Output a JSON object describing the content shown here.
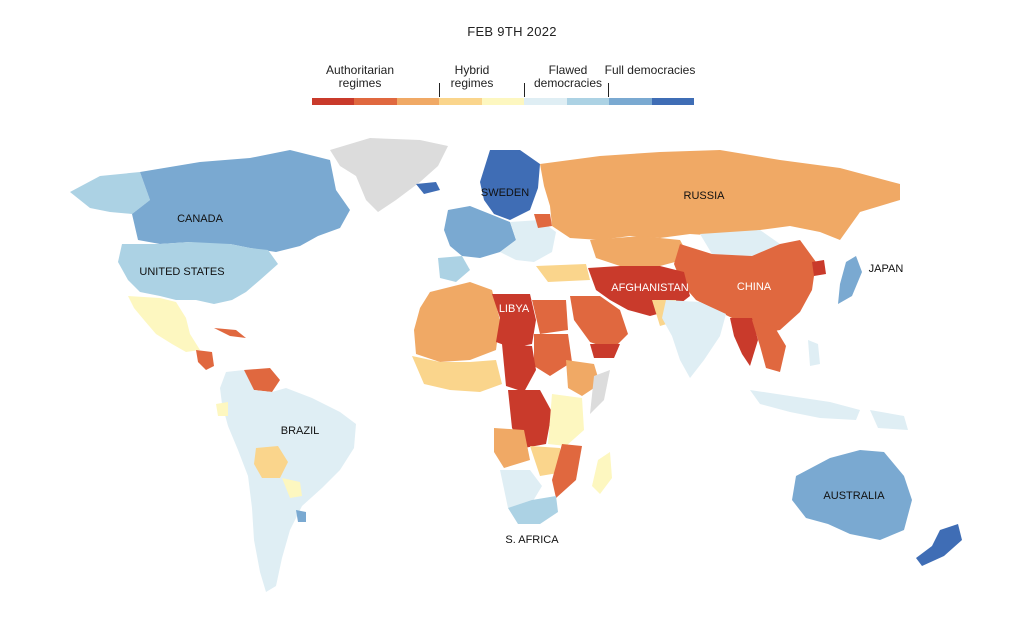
{
  "header": {
    "date": "FEB 9TH 2022"
  },
  "legend": {
    "categories": [
      {
        "label": "Authoritarian regimes"
      },
      {
        "label": "Hybrid regimes"
      },
      {
        "label": "Flawed democracies"
      },
      {
        "label": "Full democracies"
      }
    ],
    "swatches": [
      "#c93a2b",
      "#e0683f",
      "#f0a965",
      "#fad58c",
      "#fdf7c0",
      "#dfeef4",
      "#acd2e4",
      "#7aa9d1",
      "#3f6db5"
    ]
  },
  "map_labels": {
    "canada": "CANADA",
    "united_states": "UNITED STATES",
    "brazil": "BRAZIL",
    "sweden": "SWEDEN",
    "russia": "RUSSIA",
    "libya": "LIBYA",
    "afghanistan": "AFGHANISTAN",
    "china": "CHINA",
    "japan": "JAPAN",
    "australia": "AUSTRALIA",
    "south_africa": "S. AFRICA"
  }
}
